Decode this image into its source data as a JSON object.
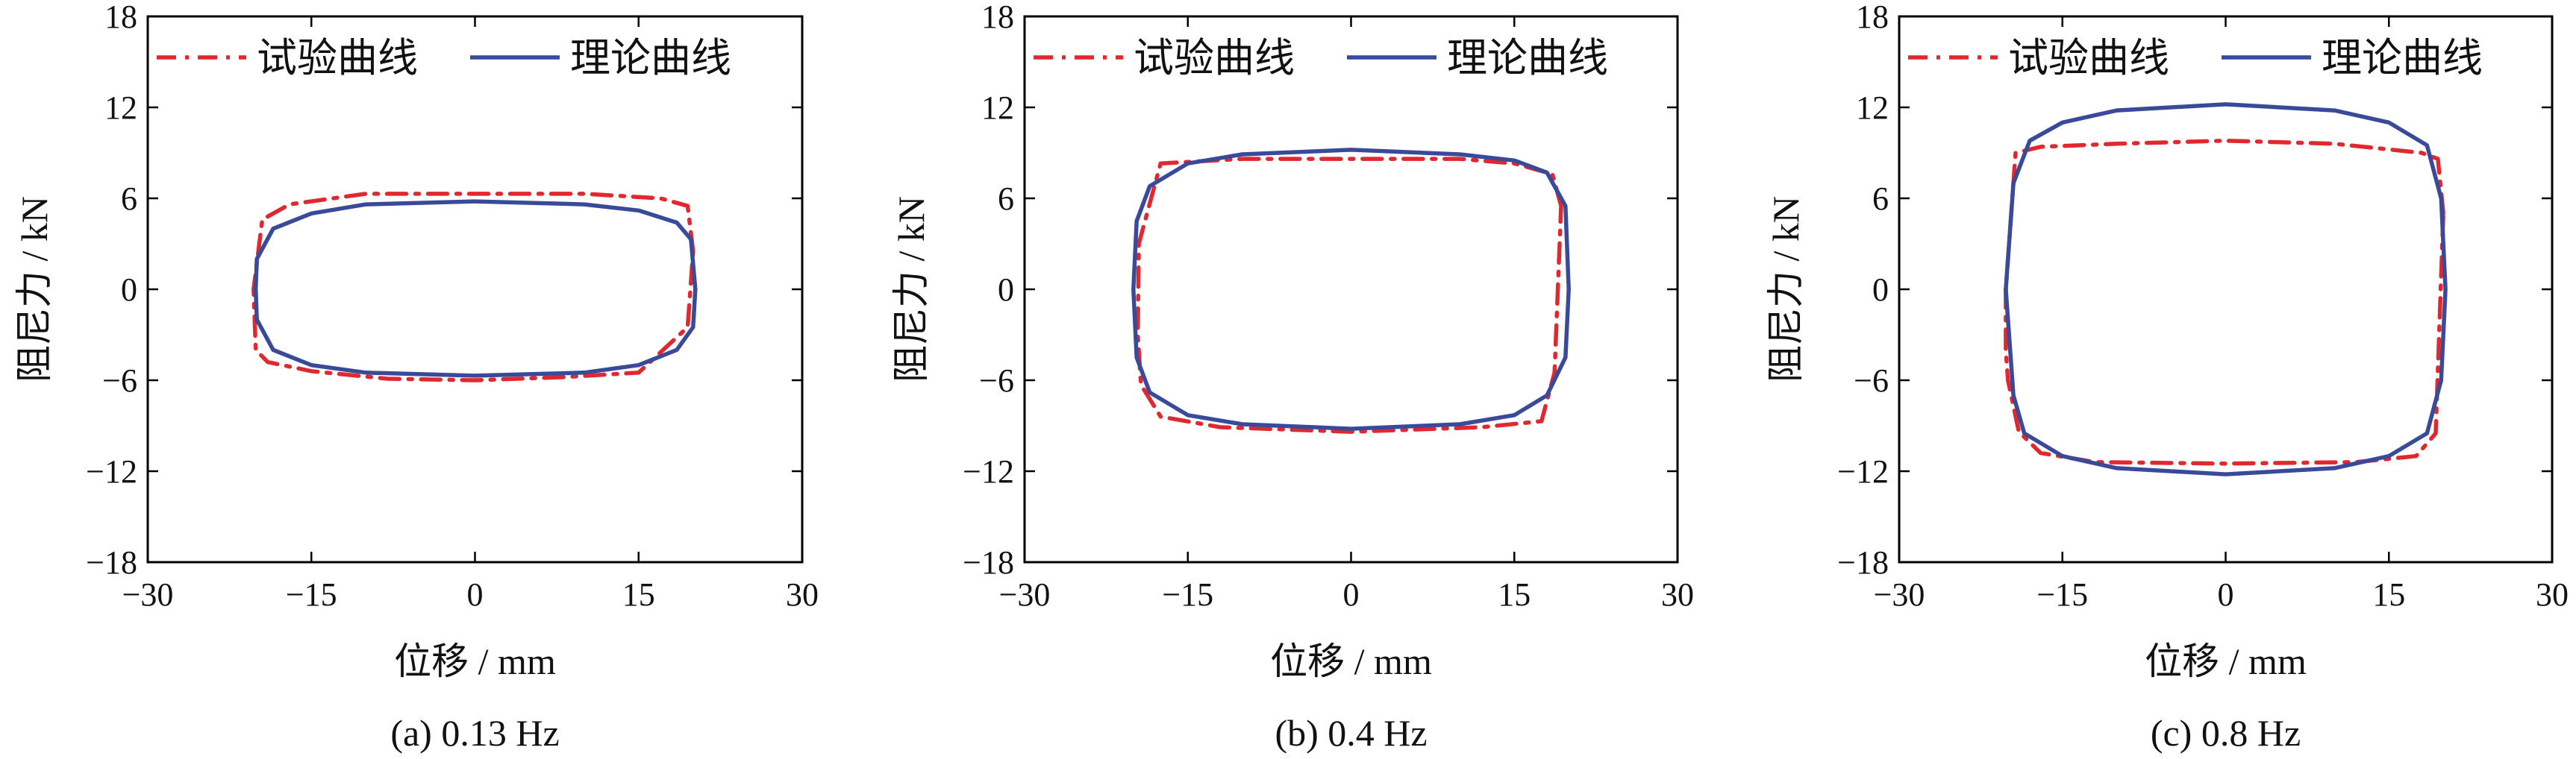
{
  "legend": {
    "experimental": "试验曲线",
    "theoretical": "理论曲线"
  },
  "colors": {
    "experimental": "#e0282e",
    "theoretical": "#3a4a9a",
    "axis": "#000000"
  },
  "chart_data": [
    {
      "type": "line",
      "caption": "(a) 0.13 Hz",
      "xlabel": "位移 / mm",
      "ylabel": "阻尼力 / kN",
      "xlim": [
        -30,
        30
      ],
      "ylim": [
        -18,
        18
      ],
      "xticks": [
        -30,
        -15,
        0,
        15,
        30
      ],
      "yticks": [
        -18,
        -12,
        -6,
        0,
        6,
        12,
        18
      ],
      "xtick_labels": [
        "−30",
        "−15",
        "0",
        "15",
        "30"
      ],
      "ytick_labels": [
        "−18",
        "−12",
        "−6",
        "0",
        "6",
        "12",
        "18"
      ],
      "legend_position": "top",
      "series": [
        {
          "name": "试验曲线",
          "style": "dash-dot",
          "x": [
            20.0,
            19.5,
            17.0,
            10.0,
            0.0,
            -10.0,
            -17.0,
            -19.5,
            -20.3,
            -20.1,
            -19.0,
            -15.0,
            -8.0,
            0.0,
            8.0,
            15.0,
            19.5,
            20.0
          ],
          "y": [
            2.5,
            5.5,
            6.0,
            6.3,
            6.3,
            6.3,
            5.6,
            4.6,
            0.0,
            -4.0,
            -4.8,
            -5.4,
            -5.9,
            -6.0,
            -5.8,
            -5.5,
            -2.5,
            2.5
          ]
        },
        {
          "name": "理论曲线",
          "style": "solid",
          "x": [
            20.2,
            19.8,
            18.5,
            15.0,
            10.0,
            0.0,
            -10.0,
            -15.0,
            -18.5,
            -20.0,
            -20.1,
            -20.0,
            -18.5,
            -15.0,
            -10.0,
            0.0,
            10.0,
            15.0,
            18.5,
            20.0,
            20.2
          ],
          "y": [
            0.0,
            3.3,
            4.4,
            5.2,
            5.6,
            5.8,
            5.6,
            5.0,
            4.0,
            2.0,
            0.0,
            -2.0,
            -4.0,
            -5.0,
            -5.5,
            -5.7,
            -5.5,
            -5.0,
            -4.0,
            -2.5,
            0.0
          ]
        }
      ]
    },
    {
      "type": "line",
      "caption": "(b) 0.4 Hz",
      "xlabel": "位移 / mm",
      "ylabel": "阻尼力 / kN",
      "xlim": [
        -30,
        30
      ],
      "ylim": [
        -18,
        18
      ],
      "xticks": [
        -30,
        -15,
        0,
        15,
        30
      ],
      "yticks": [
        -18,
        -12,
        -6,
        0,
        6,
        12,
        18
      ],
      "xtick_labels": [
        "−30",
        "−15",
        "0",
        "15",
        "30"
      ],
      "ytick_labels": [
        "−18",
        "−12",
        "−6",
        "0",
        "6",
        "12",
        "18"
      ],
      "legend_position": "top",
      "series": [
        {
          "name": "试验曲线",
          "style": "dash-dot",
          "x": [
            19.3,
            18.5,
            15.0,
            10.0,
            0.0,
            -10.0,
            -15.0,
            -17.5,
            -19.5,
            -19.6,
            -19.3,
            -17.5,
            -12.0,
            0.0,
            12.0,
            17.5,
            18.7,
            19.3
          ],
          "y": [
            5.5,
            7.6,
            8.3,
            8.6,
            8.6,
            8.6,
            8.4,
            8.3,
            3.0,
            -3.0,
            -6.3,
            -8.4,
            -9.1,
            -9.4,
            -9.1,
            -8.7,
            -5.5,
            5.5
          ]
        },
        {
          "name": "理论曲线",
          "style": "solid",
          "x": [
            20.0,
            19.7,
            18.0,
            15.0,
            10.0,
            0.0,
            -10.0,
            -15.0,
            -18.5,
            -19.7,
            -20.0,
            -19.7,
            -18.5,
            -15.0,
            -10.0,
            0.0,
            10.0,
            15.0,
            18.0,
            19.7,
            20.0
          ],
          "y": [
            0.0,
            5.5,
            7.7,
            8.5,
            8.9,
            9.2,
            8.9,
            8.3,
            6.8,
            4.5,
            0.0,
            -4.5,
            -6.8,
            -8.3,
            -8.9,
            -9.2,
            -8.9,
            -8.3,
            -7.0,
            -4.5,
            0.0
          ]
        }
      ]
    },
    {
      "type": "line",
      "caption": "(c) 0.8 Hz",
      "xlabel": "位移 / mm",
      "ylabel": "阻尼力 / kN",
      "xlim": [
        -30,
        30
      ],
      "ylim": [
        -18,
        18
      ],
      "xticks": [
        -30,
        -15,
        0,
        15,
        30
      ],
      "yticks": [
        -18,
        -12,
        -6,
        0,
        6,
        12,
        18
      ],
      "xtick_labels": [
        "−30",
        "−15",
        "0",
        "15",
        "30"
      ],
      "ytick_labels": [
        "−18",
        "−12",
        "−6",
        "0",
        "6",
        "12",
        "18"
      ],
      "legend_position": "top",
      "series": [
        {
          "name": "试验曲线",
          "style": "dash-dot",
          "x": [
            20.0,
            19.5,
            18.0,
            10.0,
            0.0,
            -10.0,
            -17.0,
            -19.3,
            -20.2,
            -20.2,
            -20.0,
            -19.0,
            -17.0,
            -12.0,
            0.0,
            12.0,
            17.5,
            19.3,
            20.0
          ],
          "y": [
            5.0,
            8.6,
            9.0,
            9.6,
            9.8,
            9.6,
            9.4,
            9.0,
            0.0,
            -4.0,
            -6.0,
            -9.4,
            -10.8,
            -11.4,
            -11.5,
            -11.4,
            -11.0,
            -9.5,
            5.0
          ]
        },
        {
          "name": "理论曲线",
          "style": "solid",
          "x": [
            20.2,
            19.8,
            18.5,
            15.0,
            10.0,
            0.0,
            -10.0,
            -15.0,
            -18.0,
            -19.5,
            -20.2,
            -19.5,
            -18.5,
            -15.0,
            -10.0,
            0.0,
            10.0,
            15.0,
            18.5,
            19.8,
            20.2
          ],
          "y": [
            0.0,
            6.0,
            9.5,
            11.0,
            11.8,
            12.2,
            11.8,
            11.0,
            9.8,
            7.0,
            0.0,
            -7.0,
            -9.5,
            -11.0,
            -11.8,
            -12.2,
            -11.8,
            -11.0,
            -9.5,
            -6.0,
            0.0
          ]
        }
      ]
    }
  ]
}
